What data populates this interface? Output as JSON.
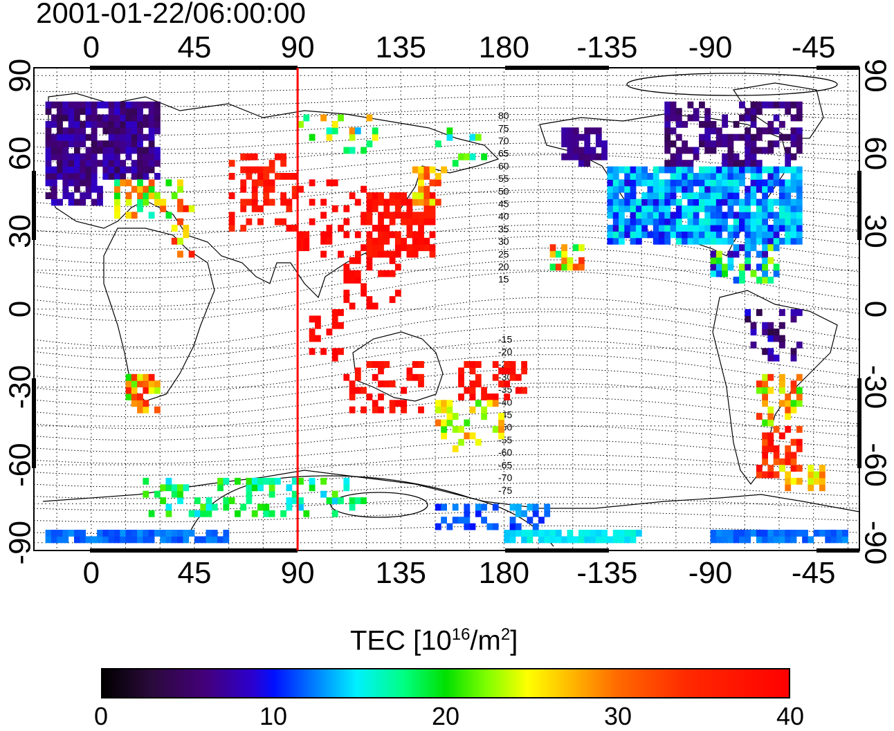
{
  "title": "2001-01-22/06:00:00",
  "map": {
    "top_lon_labels": [
      "0",
      "45",
      "90",
      "135",
      "180",
      "-135",
      "-90",
      "-45"
    ],
    "bottom_lon_labels": [
      "0",
      "45",
      "90",
      "135",
      "180",
      "-135",
      "-90",
      "-45"
    ],
    "left_lat_labels": [
      "90",
      "60",
      "30",
      "0",
      "-30",
      "-60",
      "-90"
    ],
    "right_lat_labels": [
      "90",
      "60",
      "30",
      "0",
      "-30",
      "-60",
      "-90"
    ],
    "lon_ticks": [
      0,
      45,
      90,
      135,
      180,
      225,
      270,
      315
    ],
    "lat_ticks": [
      90,
      60,
      30,
      0,
      -30,
      -60,
      -90
    ],
    "lon_range": [
      -25,
      335
    ],
    "lat_range": [
      -93,
      93
    ],
    "meridian_line_lon": 90,
    "meridian_line_color": "#ff0000",
    "contour_labels": [
      "80",
      "75",
      "70",
      "65",
      "60",
      "55",
      "50",
      "45",
      "40",
      "35",
      "30",
      "25",
      "20",
      "15",
      "-15",
      "-20",
      "-25",
      "-30",
      "-35",
      "-40",
      "-45",
      "-50",
      "-55",
      "-60",
      "-65",
      "-70",
      "-75"
    ],
    "grid": "dotted"
  },
  "colorbar": {
    "label_text": "TEC  [10",
    "label_sup1": "16",
    "label_mid": "/m",
    "label_sup2": "2",
    "label_end": "]",
    "tick_labels": [
      "0",
      "10",
      "20",
      "30",
      "40"
    ],
    "ticks": [
      0,
      10,
      20,
      30,
      40
    ],
    "range": [
      0,
      40
    ],
    "colormap": "rainbow (black-purple-blue-cyan-green-yellow-red)"
  }
}
